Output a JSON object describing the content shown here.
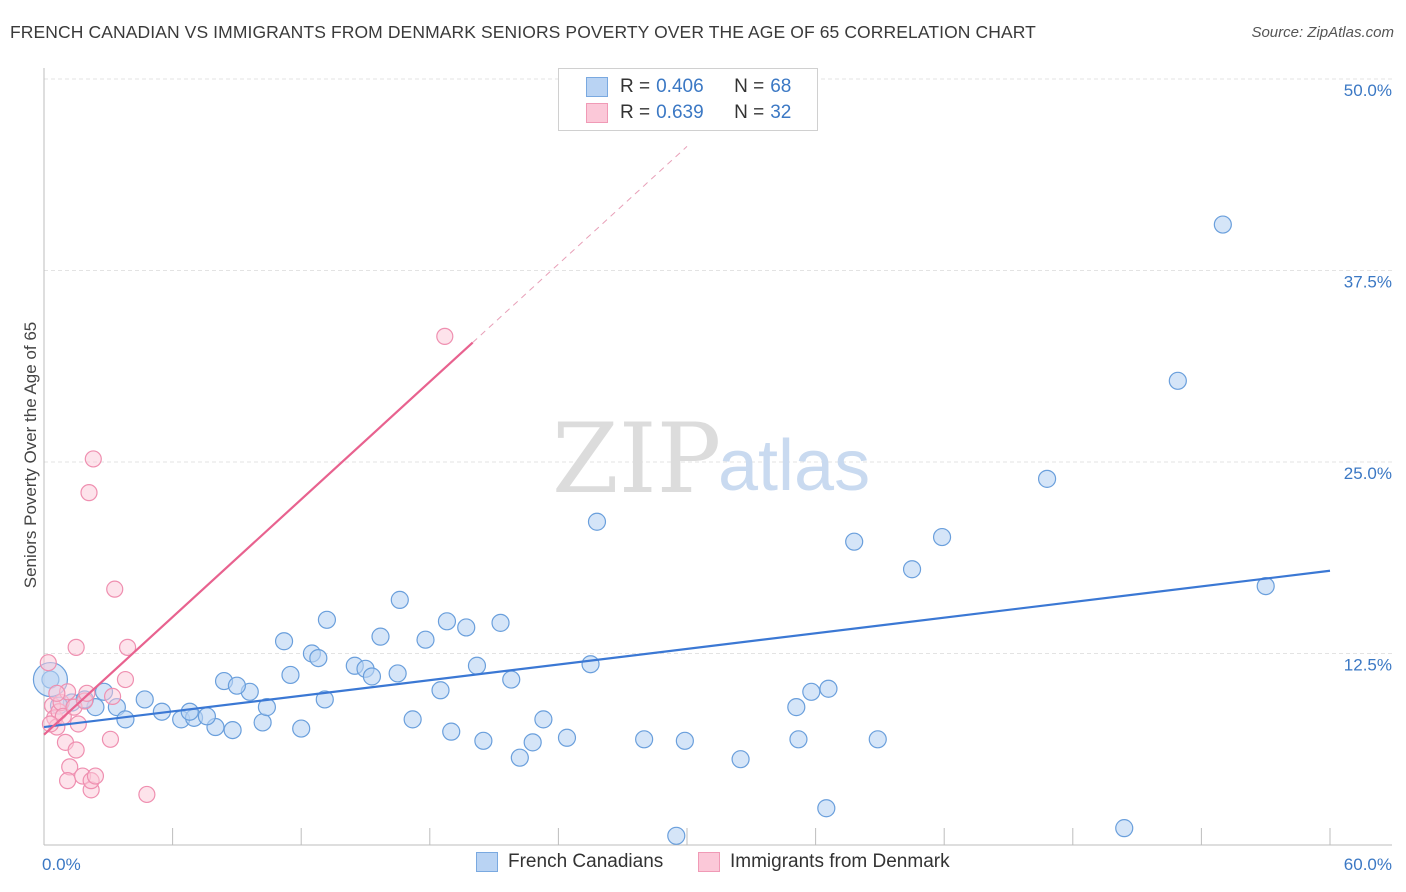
{
  "header": {
    "title": "FRENCH CANADIAN VS IMMIGRANTS FROM DENMARK SENIORS POVERTY OVER THE AGE OF 65 CORRELATION CHART",
    "source": "Source: ZipAtlas.com"
  },
  "watermark": {
    "zip": "ZIP",
    "atlas": "atlas"
  },
  "legend": {
    "r_label": "R =",
    "n_label": "N =",
    "rows": [
      {
        "r": "0.406",
        "n": "68",
        "fill": "#b9d3f3",
        "stroke": "#7aa9e0"
      },
      {
        "r": "0.639",
        "n": "32",
        "fill": "#fbc8d8",
        "stroke": "#f09ab6"
      }
    ]
  },
  "colors": {
    "blue": "#3b78d4",
    "blue_fill": "#b9d3f3",
    "pink": "#e8628f",
    "pink_fill": "#fbc8d8",
    "grid": "#e3e3e3"
  },
  "chart_data": {
    "type": "scatter",
    "title": "FRENCH CANADIAN VS IMMIGRANTS FROM DENMARK SENIORS POVERTY OVER THE AGE OF 65 CORRELATION CHART",
    "xlabel": "",
    "ylabel": "Seniors Poverty Over the Age of 65",
    "xlim": [
      0,
      60
    ],
    "ylim": [
      0,
      50
    ],
    "x_tick_labels": [
      "0.0%",
      "60.0%"
    ],
    "y_ticks": [
      12.5,
      25.0,
      37.5,
      50.0
    ],
    "y_tick_labels": [
      "12.5%",
      "25.0%",
      "37.5%",
      "50.0%"
    ],
    "grid": true,
    "legend_position": "top-center",
    "series": [
      {
        "name": "French Canadians",
        "r": 0.406,
        "n": 68,
        "trend": {
          "x": [
            0,
            60
          ],
          "y": [
            7.7,
            17.9
          ]
        },
        "points": [
          [
            0.3,
            10.8
          ],
          [
            1.3,
            9.3
          ],
          [
            2.4,
            9.0
          ],
          [
            2.8,
            10.0
          ],
          [
            3.4,
            9.0
          ],
          [
            4.7,
            9.5
          ],
          [
            3.8,
            8.2
          ],
          [
            5.5,
            8.7
          ],
          [
            6.4,
            8.2
          ],
          [
            7.0,
            8.3
          ],
          [
            8.0,
            7.7
          ],
          [
            6.8,
            8.7
          ],
          [
            7.6,
            8.4
          ],
          [
            8.8,
            7.5
          ],
          [
            8.4,
            10.7
          ],
          [
            9.6,
            10.0
          ],
          [
            9.0,
            10.4
          ],
          [
            10.2,
            8.0
          ],
          [
            10.4,
            9.0
          ],
          [
            11.5,
            11.1
          ],
          [
            11.2,
            13.3
          ],
          [
            12.5,
            12.5
          ],
          [
            12.0,
            7.6
          ],
          [
            12.8,
            12.2
          ],
          [
            13.2,
            14.7
          ],
          [
            13.1,
            9.5
          ],
          [
            14.5,
            11.7
          ],
          [
            15.0,
            11.5
          ],
          [
            15.3,
            11.0
          ],
          [
            15.7,
            13.6
          ],
          [
            16.5,
            11.2
          ],
          [
            16.6,
            16.0
          ],
          [
            17.2,
            8.2
          ],
          [
            17.8,
            13.4
          ],
          [
            18.5,
            10.1
          ],
          [
            18.8,
            14.6
          ],
          [
            19.0,
            7.4
          ],
          [
            19.7,
            14.2
          ],
          [
            20.2,
            11.7
          ],
          [
            20.5,
            6.8
          ],
          [
            21.3,
            14.5
          ],
          [
            21.8,
            10.8
          ],
          [
            22.2,
            5.7
          ],
          [
            22.8,
            6.7
          ],
          [
            23.3,
            8.2
          ],
          [
            24.4,
            7.0
          ],
          [
            25.5,
            11.8
          ],
          [
            25.8,
            21.1
          ],
          [
            28.0,
            6.9
          ],
          [
            29.5,
            0.6
          ],
          [
            29.9,
            6.8
          ],
          [
            32.5,
            5.6
          ],
          [
            35.1,
            9.0
          ],
          [
            35.8,
            10.0
          ],
          [
            35.2,
            6.9
          ],
          [
            36.6,
            10.2
          ],
          [
            36.5,
            2.4
          ],
          [
            37.8,
            19.8
          ],
          [
            38.9,
            6.9
          ],
          [
            40.5,
            18.0
          ],
          [
            41.9,
            20.1
          ],
          [
            46.8,
            23.9
          ],
          [
            50.4,
            1.1
          ],
          [
            52.9,
            30.3
          ],
          [
            55.0,
            40.5
          ],
          [
            57.0,
            16.9
          ],
          [
            0.7,
            9.1
          ],
          [
            1.9,
            9.5
          ]
        ]
      },
      {
        "name": "Immigrants from Denmark",
        "r": 0.639,
        "n": 32,
        "trend": {
          "x": [
            0,
            20
          ],
          "y": [
            7.2,
            32.8
          ]
        },
        "trend_extended": {
          "x": [
            20,
            30
          ],
          "y": [
            32.8,
            45.6
          ]
        },
        "points": [
          [
            0.2,
            11.9
          ],
          [
            0.4,
            9.1
          ],
          [
            0.5,
            8.3
          ],
          [
            0.6,
            7.7
          ],
          [
            0.7,
            8.7
          ],
          [
            0.8,
            9.3
          ],
          [
            0.9,
            8.4
          ],
          [
            1.0,
            6.7
          ],
          [
            1.1,
            10.0
          ],
          [
            1.2,
            5.1
          ],
          [
            1.1,
            4.2
          ],
          [
            1.4,
            9.0
          ],
          [
            1.5,
            6.2
          ],
          [
            1.5,
            12.9
          ],
          [
            1.6,
            7.9
          ],
          [
            1.8,
            4.5
          ],
          [
            1.9,
            9.4
          ],
          [
            2.0,
            9.9
          ],
          [
            2.1,
            23.0
          ],
          [
            2.2,
            3.6
          ],
          [
            2.2,
            4.2
          ],
          [
            2.3,
            25.2
          ],
          [
            2.4,
            4.5
          ],
          [
            3.1,
            6.9
          ],
          [
            3.2,
            9.7
          ],
          [
            3.3,
            16.7
          ],
          [
            3.8,
            10.8
          ],
          [
            3.9,
            12.9
          ],
          [
            4.8,
            3.3
          ],
          [
            18.7,
            33.2
          ],
          [
            0.3,
            7.9
          ],
          [
            0.6,
            9.9
          ]
        ]
      }
    ]
  },
  "bottom_legend": {
    "items": [
      {
        "label": "French Canadians"
      },
      {
        "label": "Immigrants from Denmark"
      }
    ]
  }
}
